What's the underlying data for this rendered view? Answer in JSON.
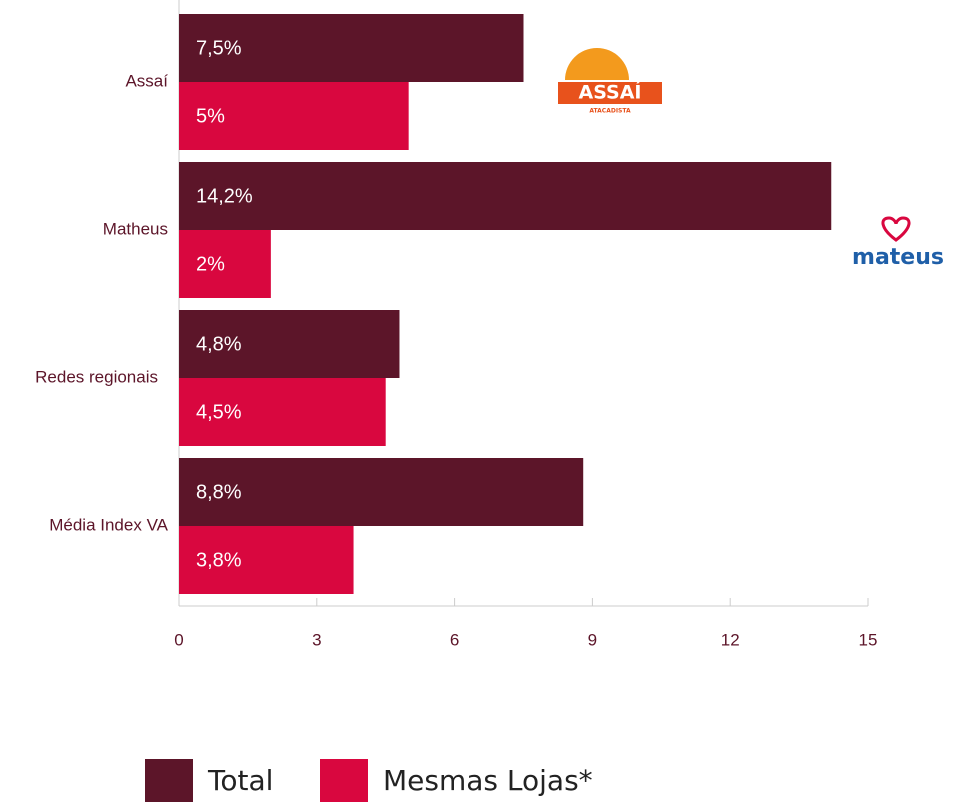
{
  "chart_data": {
    "type": "bar",
    "orientation": "horizontal",
    "categories": [
      "Assaí",
      "Matheus",
      "Redes regionais",
      "Média Index VA"
    ],
    "series": [
      {
        "name": "Total",
        "color": "#5c1529",
        "values": [
          7.5,
          14.2,
          4.8,
          8.8
        ],
        "value_labels": [
          "7,5%",
          "14,2%",
          "4,8%",
          "8,8%"
        ]
      },
      {
        "name": "Mesmas Lojas*",
        "color": "#d9073f",
        "values": [
          5,
          2,
          4.5,
          3.8
        ],
        "value_labels": [
          "5%",
          "2%",
          "4,5%",
          "3,8%"
        ]
      }
    ],
    "xlim": [
      0,
      15
    ],
    "xticks": [
      0,
      3,
      6,
      9,
      12,
      15
    ],
    "logos": [
      "ASSAÍ",
      "ATACADISTA",
      "mateus"
    ],
    "legend": "bottom"
  }
}
